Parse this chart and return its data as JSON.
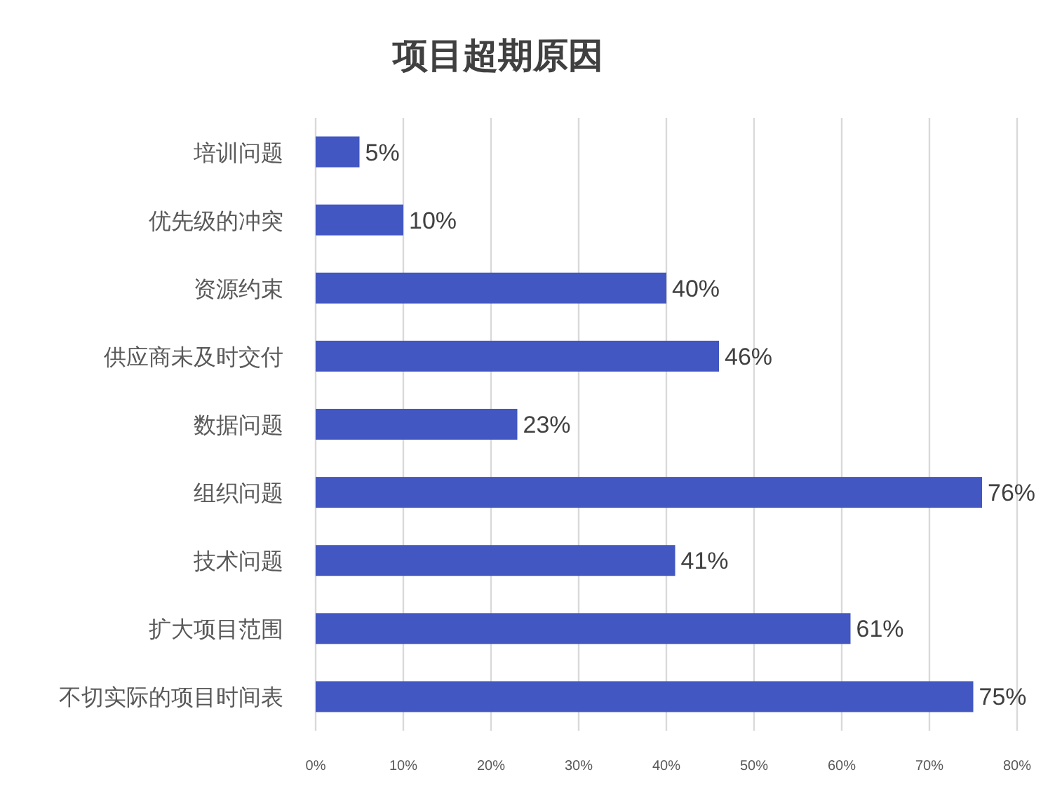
{
  "chart_data": {
    "type": "bar",
    "orientation": "horizontal",
    "title": "项目超期原因",
    "categories": [
      "培训问题",
      "优先级的冲突",
      "资源约束",
      "供应商未及时交付",
      "数据问题",
      "组织问题",
      "技术问题",
      "扩大项目范围",
      "不切实际的项目时间表"
    ],
    "values": [
      5,
      10,
      40,
      46,
      23,
      76,
      41,
      61,
      75
    ],
    "value_labels": [
      "5%",
      "10%",
      "40%",
      "46%",
      "23%",
      "76%",
      "41%",
      "61%",
      "75%"
    ],
    "color": "#4257c2",
    "xlim": [
      0,
      80
    ],
    "xticks": [
      {
        "value": 0,
        "label": "0%"
      },
      {
        "value": 10,
        "label": "10%"
      },
      {
        "value": 20,
        "label": "20%"
      },
      {
        "value": 30,
        "label": "30%"
      },
      {
        "value": 40,
        "label": "40%"
      },
      {
        "value": 50,
        "label": "50%"
      },
      {
        "value": 60,
        "label": "60%"
      },
      {
        "value": 70,
        "label": "70%"
      },
      {
        "value": 80,
        "label": "80%"
      }
    ],
    "grid": "x"
  }
}
